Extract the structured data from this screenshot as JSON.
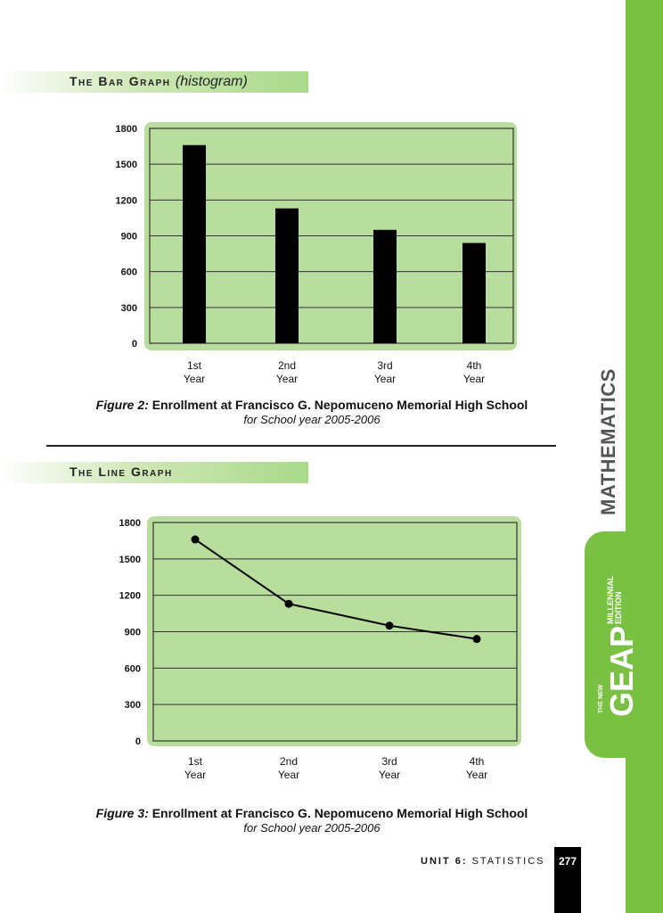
{
  "sections": {
    "bar_title": "The Bar Graph",
    "bar_title_paren": "(histogram)",
    "line_title": "The Line Graph"
  },
  "captions": {
    "fig2_label": "Figure 2:",
    "fig2_text": "Enrollment at Francisco G. Nepomuceno Memorial High School",
    "fig2_sub": "for School year 2005-2006",
    "fig3_label": "Figure 3:",
    "fig3_text": "Enrollment at Francisco G. Nepomuceno Memorial High School",
    "fig3_sub": "for School year 2005-2006"
  },
  "sidebar": {
    "subject": "MATHEMATICS",
    "brand_top": "THE NEW",
    "brand": "GEAP",
    "brand_edition_1": "MILLENNIAL",
    "brand_edition_2": "EDITION"
  },
  "footer": {
    "unit_label": "UNIT 6:",
    "unit_name": "STATISTICS",
    "page_number": "277"
  },
  "colors": {
    "panel": "#b9dd9c",
    "bar": "#000000",
    "sidebar_green": "#79c043"
  },
  "chart_data": [
    {
      "type": "bar",
      "categories": [
        "1st Year",
        "2nd Year",
        "3rd Year",
        "4th Year"
      ],
      "category_lines": [
        [
          "1st",
          "Year"
        ],
        [
          "2nd",
          "Year"
        ],
        [
          "3rd",
          "Year"
        ],
        [
          "4th",
          "Year"
        ]
      ],
      "values": [
        1660,
        1130,
        950,
        840
      ],
      "yticks": [
        0,
        300,
        600,
        900,
        1200,
        1500,
        1800
      ],
      "ylim": [
        0,
        1800
      ],
      "grid": true
    },
    {
      "type": "line",
      "categories": [
        "1st Year",
        "2nd Year",
        "3rd Year",
        "4th Year"
      ],
      "category_lines": [
        [
          "1st",
          "Year"
        ],
        [
          "2nd",
          "Year"
        ],
        [
          "3rd",
          "Year"
        ],
        [
          "4th",
          "Year"
        ]
      ],
      "values": [
        1660,
        1130,
        950,
        840
      ],
      "yticks": [
        0,
        300,
        600,
        900,
        1200,
        1500,
        1800
      ],
      "ylim": [
        0,
        1800
      ],
      "grid": true
    }
  ]
}
